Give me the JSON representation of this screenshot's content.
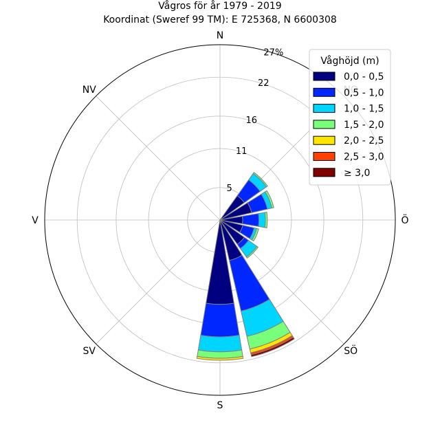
{
  "chart_data": {
    "type": "windrose",
    "title_line1": "Vågros för år 1979 - 2019",
    "title_line2": "Koordinat (Sweref 99 TM): E 725368, N 6600308",
    "directions": [
      "N",
      "NO",
      "Ö",
      "SÖ",
      "S",
      "SV",
      "V",
      "NV"
    ],
    "radial_ticks": [
      "5",
      "11",
      "16",
      "22",
      "27%"
    ],
    "radial_tick_values": [
      5,
      11,
      16,
      22,
      27
    ],
    "rmax": 27,
    "legend": {
      "title": "Våghöjd (m)",
      "placement": "top-right",
      "items": [
        {
          "label": "0,0 - 0,5",
          "color": "#000080"
        },
        {
          "label": "0,5 - 1,0",
          "color": "#0027ff"
        },
        {
          "label": "1,0 - 1,5",
          "color": "#00d5ff"
        },
        {
          "label": "1,5 - 2,0",
          "color": "#7aff7a"
        },
        {
          "label": "2,0 - 2,5",
          "color": "#ffe600"
        },
        {
          "label": "2,5 - 3,0",
          "color": "#ff4000"
        },
        {
          "label": "≥ 3,0",
          "color": "#800000"
        }
      ]
    },
    "sectors": [
      {
        "bearing": 45,
        "stack": [
          4.6,
          3.0,
          1.2,
          0.2,
          0.0,
          0.0,
          0.0
        ]
      },
      {
        "bearing": 67.5,
        "stack": [
          5.0,
          2.5,
          0.7,
          0.3,
          0.0,
          0.0,
          0.0
        ]
      },
      {
        "bearing": 90,
        "stack": [
          3.5,
          2.5,
          1.0,
          0.3,
          0.0,
          0.0,
          0.0
        ]
      },
      {
        "bearing": 112.5,
        "stack": [
          3.6,
          1.8,
          0.4,
          0.3,
          0.0,
          0.0,
          0.0
        ]
      },
      {
        "bearing": 135,
        "stack": [
          4.6,
          0.8,
          1.6,
          0.2,
          0.0,
          0.0,
          0.0
        ]
      },
      {
        "bearing": 157.5,
        "stack": [
          6.4,
          8.0,
          4.0,
          2.0,
          0.6,
          0.3,
          0.3
        ]
      },
      {
        "bearing": 180,
        "stack": [
          13.0,
          5.0,
          2.3,
          1.0,
          0.3,
          0.0,
          0.0
        ]
      }
    ],
    "grid": true
  }
}
